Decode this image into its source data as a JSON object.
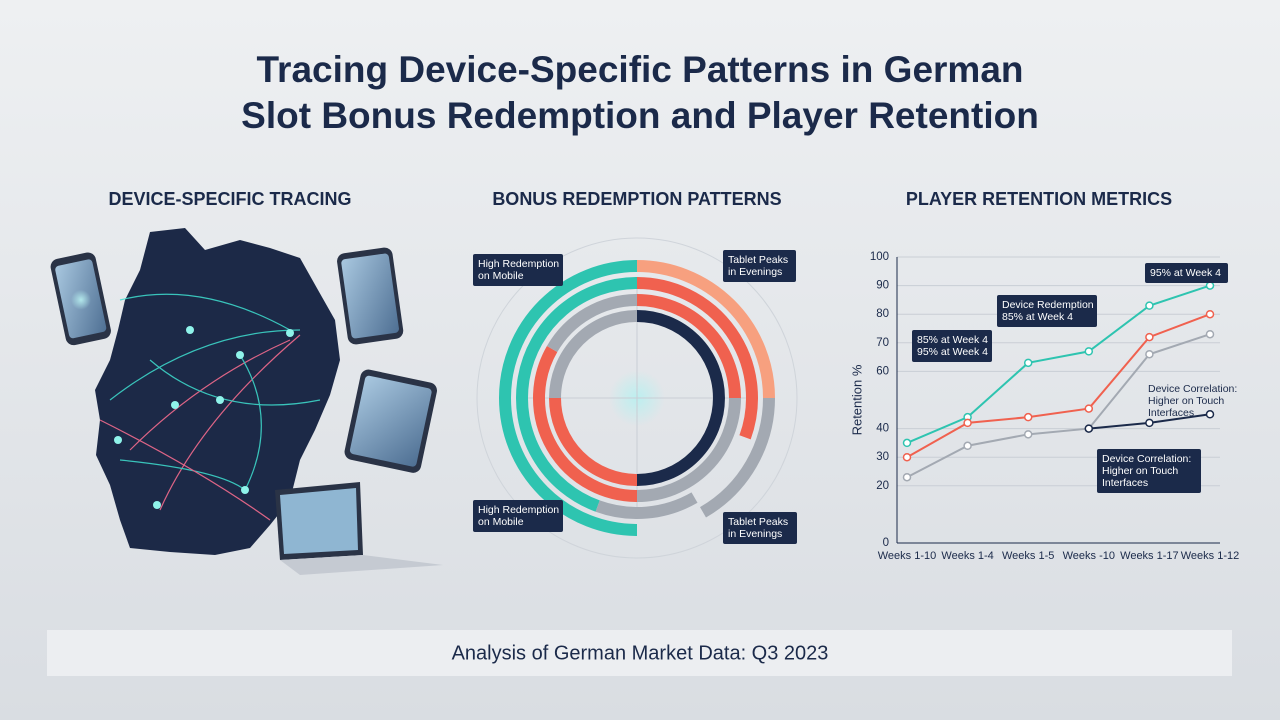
{
  "title": [
    "Tracing Device-Specific Patterns in German",
    "Slot Bonus Redemption and Player Retention"
  ],
  "sections": [
    "DEVICE-SPECIFIC TRACING",
    "BONUS REDEMPTION PATTERNS",
    "PLAYER RETENTION METRICS"
  ],
  "ring_labels": [
    [
      "High Redemption",
      "on Mobile"
    ],
    [
      "Tablet Peaks",
      "in Evenings"
    ],
    [
      "High Redemption",
      "on Mobile"
    ],
    [
      "Tablet Peaks",
      "in Evenings"
    ]
  ],
  "chart_data": {
    "type": "line",
    "y_label": "Retention %",
    "categories": [
      "Weeks 1-10",
      "Weeks 1-4",
      "Weeks 1-5",
      "Weeks -10",
      "Weeks 1-17",
      "Weeks 1-12"
    ],
    "series": [
      {
        "color": "#2ec4b0",
        "values": [
          35,
          44,
          63,
          67,
          83,
          90
        ]
      },
      {
        "color": "#f0614f",
        "values": [
          30,
          42,
          44,
          47,
          72,
          80
        ]
      },
      {
        "color": "#a3a9b2",
        "values": [
          23,
          34,
          38,
          40,
          66,
          73
        ]
      },
      {
        "color": "#1b2a4a",
        "values": [
          null,
          null,
          null,
          40,
          42,
          45
        ]
      }
    ],
    "ylim": [
      0,
      100
    ],
    "yticks": [
      0,
      20,
      30,
      40,
      60,
      70,
      80,
      90,
      100
    ],
    "grid": true,
    "annotations": [
      {
        "lines": [
          "95% at Week 4"
        ],
        "boxed": true
      },
      {
        "lines": [
          "Device Redemption",
          "85% at Week 4"
        ],
        "boxed": true
      },
      {
        "lines": [
          "85% at Week 4",
          "95% at Week 4"
        ],
        "boxed": true
      },
      {
        "lines": [
          "Device Correlation:",
          "Higher on Touch",
          "Interfaces"
        ],
        "boxed": false
      },
      {
        "lines": [
          "Device Correlation:",
          "Higher on Touch",
          "Interfaces"
        ],
        "boxed": true
      }
    ]
  },
  "footer": "Analysis of German Market Data: Q3 2023"
}
